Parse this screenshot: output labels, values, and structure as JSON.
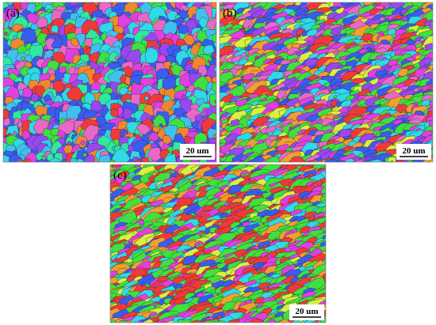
{
  "panels": [
    {
      "label": "(a)",
      "scale_bar": "20 um"
    },
    {
      "label": "(b)",
      "scale_bar": "20 um"
    },
    {
      "label": "(c)",
      "scale_bar": "20 um"
    }
  ]
}
